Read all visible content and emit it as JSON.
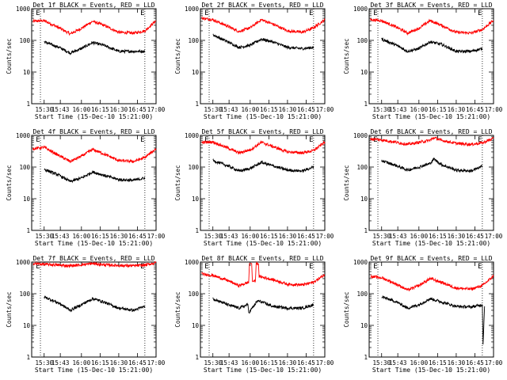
{
  "chart_data": [
    {
      "type": "line",
      "title": "Det 1f BLACK = Events, RED = LLD",
      "xlabel": "Start Time (15-Dec-10 15:21:00)",
      "ylabel": "Counts/sec",
      "yscale": "log",
      "ylim": [
        1,
        1000
      ],
      "xlim": [
        15.333,
        17.0
      ],
      "x_ticks": [
        15.5,
        15.7167,
        16.0,
        16.25,
        16.5,
        16.75,
        17.0
      ],
      "x_tick_labels": [
        "15:30",
        "15:43",
        "16:00",
        "16:15",
        "16:30",
        "16:45",
        "17:00"
      ],
      "y_ticks": [
        1,
        10,
        100,
        1000
      ],
      "y_tick_labels": [
        "1",
        "10",
        "100",
        "1000"
      ],
      "markers": [
        {
          "x": 15.45,
          "label": "E"
        },
        {
          "x": 16.85,
          "label": "E"
        }
      ],
      "series": [
        {
          "color": "#ff0000",
          "x": [
            15.35,
            15.5,
            15.7,
            15.85,
            16.0,
            16.15,
            16.3,
            16.5,
            16.7,
            16.85,
            17.0
          ],
          "values": [
            400,
            420,
            250,
            160,
            240,
            400,
            300,
            180,
            170,
            200,
            420
          ]
        },
        {
          "color": "#000000",
          "x": [
            15.5,
            15.7,
            15.85,
            16.0,
            16.15,
            16.3,
            16.5,
            16.7,
            16.85
          ],
          "values": [
            90,
            60,
            40,
            55,
            85,
            70,
            45,
            45,
            45
          ]
        }
      ]
    },
    {
      "type": "line",
      "title": "Det 2f BLACK = Events, RED = LLD",
      "xlabel": "Start Time (15-Dec-10 15:21:00)",
      "ylabel": "Counts/sec",
      "yscale": "log",
      "ylim": [
        1,
        1000
      ],
      "xlim": [
        15.333,
        17.0
      ],
      "x_ticks": [
        15.5,
        15.7167,
        16.0,
        16.25,
        16.5,
        16.75,
        17.0
      ],
      "x_tick_labels": [
        "15:30",
        "15:43",
        "16:00",
        "16:15",
        "16:30",
        "16:45",
        "17:00"
      ],
      "y_ticks": [
        1,
        10,
        100,
        1000
      ],
      "y_tick_labels": [
        "1",
        "10",
        "100",
        "1000"
      ],
      "markers": [
        {
          "x": 15.45,
          "label": "E"
        },
        {
          "x": 16.85,
          "label": "E"
        }
      ],
      "series": [
        {
          "color": "#ff0000",
          "x": [
            15.35,
            15.5,
            15.7,
            15.85,
            16.0,
            16.15,
            16.3,
            16.5,
            16.7,
            16.85,
            17.0
          ],
          "values": [
            500,
            450,
            280,
            190,
            250,
            450,
            330,
            200,
            180,
            250,
            450
          ]
        },
        {
          "color": "#000000",
          "x": [
            15.5,
            15.7,
            15.85,
            16.0,
            16.15,
            16.3,
            16.5,
            16.7,
            16.85
          ],
          "values": [
            150,
            90,
            60,
            70,
            110,
            90,
            60,
            55,
            60
          ]
        }
      ]
    },
    {
      "type": "line",
      "title": "Det 3f BLACK = Events, RED = LLD",
      "xlabel": "Start Time (15-Dec-10 15:21:00)",
      "ylabel": "Counts/sec",
      "yscale": "log",
      "ylim": [
        1,
        1000
      ],
      "xlim": [
        15.333,
        17.0
      ],
      "x_ticks": [
        15.5,
        15.7167,
        16.0,
        16.25,
        16.5,
        16.75,
        17.0
      ],
      "x_tick_labels": [
        "15:30",
        "15:43",
        "16:00",
        "16:15",
        "16:30",
        "16:45",
        "17:00"
      ],
      "y_ticks": [
        1,
        10,
        100,
        1000
      ],
      "y_tick_labels": [
        "1",
        "10",
        "100",
        "1000"
      ],
      "markers": [
        {
          "x": 15.45,
          "label": "E"
        },
        {
          "x": 16.85,
          "label": "E"
        }
      ],
      "series": [
        {
          "color": "#ff0000",
          "x": [
            15.35,
            15.5,
            15.7,
            15.85,
            16.0,
            16.15,
            16.3,
            16.5,
            16.7,
            16.85,
            17.0
          ],
          "values": [
            450,
            420,
            260,
            170,
            240,
            420,
            300,
            180,
            170,
            220,
            430
          ]
        },
        {
          "color": "#000000",
          "x": [
            15.5,
            15.7,
            15.85,
            16.0,
            16.15,
            16.3,
            16.5,
            16.7,
            16.85
          ],
          "values": [
            110,
            70,
            45,
            55,
            90,
            75,
            45,
            45,
            55
          ]
        }
      ]
    },
    {
      "type": "line",
      "title": "Det 4f BLACK = Events, RED = LLD",
      "xlabel": "Start Time (15-Dec-10 15:21:00)",
      "ylabel": "Counts/sec",
      "yscale": "log",
      "ylim": [
        1,
        1000
      ],
      "xlim": [
        15.333,
        17.0
      ],
      "x_ticks": [
        15.5,
        15.7167,
        16.0,
        16.25,
        16.5,
        16.75,
        17.0
      ],
      "x_tick_labels": [
        "15:30",
        "15:43",
        "16:00",
        "16:15",
        "16:30",
        "16:45",
        "17:00"
      ],
      "y_ticks": [
        1,
        10,
        100,
        1000
      ],
      "y_tick_labels": [
        "1",
        "10",
        "100",
        "1000"
      ],
      "markers": [
        {
          "x": 15.45,
          "label": "E"
        },
        {
          "x": 16.85,
          "label": "E"
        }
      ],
      "series": [
        {
          "color": "#ff0000",
          "x": [
            15.35,
            15.5,
            15.7,
            15.85,
            16.0,
            16.15,
            16.3,
            16.5,
            16.7,
            16.85,
            17.0
          ],
          "values": [
            380,
            420,
            230,
            150,
            220,
            360,
            260,
            160,
            150,
            200,
            380
          ]
        },
        {
          "color": "#000000",
          "x": [
            15.5,
            15.7,
            15.85,
            16.0,
            16.15,
            16.3,
            16.5,
            16.7,
            16.85
          ],
          "values": [
            85,
            55,
            35,
            45,
            70,
            55,
            40,
            38,
            45
          ]
        }
      ]
    },
    {
      "type": "line",
      "title": "Det 5f BLACK = Events, RED = LLD",
      "xlabel": "Start Time (15-Dec-10 15:21:00)",
      "ylabel": "Counts/sec",
      "yscale": "log",
      "ylim": [
        1,
        1000
      ],
      "xlim": [
        15.333,
        17.0
      ],
      "x_ticks": [
        15.5,
        15.7167,
        16.0,
        16.25,
        16.5,
        16.75,
        17.0
      ],
      "x_tick_labels": [
        "15:30",
        "15:43",
        "16:00",
        "16:15",
        "16:30",
        "16:45",
        "17:00"
      ],
      "y_ticks": [
        1,
        10,
        100,
        1000
      ],
      "y_tick_labels": [
        "1",
        "10",
        "100",
        "1000"
      ],
      "markers": [
        {
          "x": 15.45,
          "label": "E"
        },
        {
          "x": 16.85,
          "label": "E"
        }
      ],
      "series": [
        {
          "color": "#ff0000",
          "x": [
            15.35,
            15.5,
            15.7,
            15.85,
            16.0,
            16.15,
            16.3,
            16.5,
            16.7,
            16.85,
            17.0
          ],
          "values": [
            600,
            620,
            400,
            280,
            350,
            600,
            450,
            300,
            280,
            330,
            620
          ]
        },
        {
          "color": "#000000",
          "x": [
            15.5,
            15.7,
            15.85,
            16.0,
            16.15,
            16.3,
            16.5,
            16.7,
            16.85
          ],
          "values": [
            160,
            110,
            75,
            90,
            140,
            110,
            80,
            75,
            100
          ]
        }
      ]
    },
    {
      "type": "line",
      "title": "Det 6f BLACK = Events, RED = LLD",
      "xlabel": "Start Time (15-Dec-10 15:21:00)",
      "ylabel": "Counts/sec",
      "yscale": "log",
      "ylim": [
        1,
        1000
      ],
      "xlim": [
        15.333,
        17.0
      ],
      "x_ticks": [
        15.5,
        15.7167,
        16.0,
        16.25,
        16.5,
        16.75,
        17.0
      ],
      "x_tick_labels": [
        "15:30",
        "15:43",
        "16:00",
        "16:15",
        "16:30",
        "16:45",
        "17:00"
      ],
      "y_ticks": [
        1,
        10,
        100,
        1000
      ],
      "y_tick_labels": [
        "1",
        "10",
        "100",
        "1000"
      ],
      "markers": [
        {
          "x": 15.45,
          "label": "E"
        },
        {
          "x": 16.85,
          "label": "E"
        }
      ],
      "series": [
        {
          "color": "#ff0000",
          "x": [
            15.35,
            15.5,
            15.7,
            15.85,
            16.0,
            16.15,
            16.2,
            16.3,
            16.5,
            16.7,
            16.85,
            17.0
          ],
          "values": [
            780,
            720,
            600,
            520,
            600,
            700,
            850,
            700,
            560,
            520,
            580,
            800
          ]
        },
        {
          "color": "#000000",
          "x": [
            15.5,
            15.7,
            15.85,
            16.0,
            16.15,
            16.2,
            16.3,
            16.5,
            16.7,
            16.85
          ],
          "values": [
            160,
            110,
            80,
            100,
            130,
            180,
            120,
            80,
            75,
            105
          ]
        }
      ]
    },
    {
      "type": "line",
      "title": "Det 7f BLACK = Events, RED = LLD",
      "xlabel": "Start Time (15-Dec-10 15:21:00)",
      "ylabel": "Counts/sec",
      "yscale": "log",
      "ylim": [
        1,
        1000
      ],
      "xlim": [
        15.333,
        17.0
      ],
      "x_ticks": [
        15.5,
        15.7167,
        16.0,
        16.25,
        16.5,
        16.75,
        17.0
      ],
      "x_tick_labels": [
        "15:30",
        "15:43",
        "16:00",
        "16:15",
        "16:30",
        "16:45",
        "17:00"
      ],
      "y_ticks": [
        1,
        10,
        100,
        1000
      ],
      "y_tick_labels": [
        "1",
        "10",
        "100",
        "1000"
      ],
      "markers": [
        {
          "x": 15.45,
          "label": "E"
        },
        {
          "x": 16.85,
          "label": "E"
        }
      ],
      "series": [
        {
          "color": "#ff0000",
          "x": [
            15.35,
            15.5,
            15.7,
            15.85,
            16.0,
            16.15,
            16.3,
            16.5,
            16.7,
            16.85,
            17.0
          ],
          "values": [
            900,
            850,
            800,
            760,
            820,
            900,
            820,
            780,
            760,
            800,
            950
          ]
        },
        {
          "color": "#000000",
          "x": [
            15.5,
            15.7,
            15.85,
            16.0,
            16.15,
            16.3,
            16.5,
            16.7,
            16.85
          ],
          "values": [
            80,
            50,
            30,
            45,
            70,
            55,
            35,
            30,
            40
          ]
        }
      ]
    },
    {
      "type": "line",
      "title": "Det 8f BLACK = Events, RED = LLD",
      "xlabel": "Start Time (15-Dec-10 15:21:00)",
      "ylabel": "Counts/sec",
      "yscale": "log",
      "ylim": [
        1,
        1000
      ],
      "xlim": [
        15.333,
        17.0
      ],
      "x_ticks": [
        15.5,
        15.7167,
        16.0,
        16.25,
        16.5,
        16.75,
        17.0
      ],
      "x_tick_labels": [
        "15:30",
        "15:43",
        "16:00",
        "16:15",
        "16:30",
        "16:45",
        "17:00"
      ],
      "y_ticks": [
        1,
        10,
        100,
        1000
      ],
      "y_tick_labels": [
        "1",
        "10",
        "100",
        "1000"
      ],
      "markers": [
        {
          "x": 15.45,
          "label": "E"
        },
        {
          "x": 16.85,
          "label": "E"
        }
      ],
      "series": [
        {
          "color": "#ff0000",
          "x": [
            15.35,
            15.5,
            15.7,
            15.85,
            15.98,
            15.99,
            16.02,
            16.03,
            16.07,
            16.08,
            16.11,
            16.12,
            16.3,
            16.5,
            16.7,
            16.85,
            17.0
          ],
          "values": [
            420,
            380,
            260,
            180,
            230,
            900,
            900,
            250,
            250,
            900,
            900,
            350,
            280,
            200,
            190,
            230,
            400
          ]
        },
        {
          "color": "#000000",
          "x": [
            15.5,
            15.7,
            15.85,
            15.97,
            15.98,
            16.1,
            16.15,
            16.3,
            16.5,
            16.7,
            16.85
          ],
          "values": [
            70,
            45,
            35,
            45,
            25,
            60,
            55,
            40,
            35,
            35,
            45
          ]
        }
      ]
    },
    {
      "type": "line",
      "title": "Det 9f BLACK = Events, RED = LLD",
      "xlabel": "Start Time (15-Dec-10 15:21:00)",
      "ylabel": "Counts/sec",
      "yscale": "log",
      "ylim": [
        1,
        1000
      ],
      "xlim": [
        15.333,
        17.0
      ],
      "x_ticks": [
        15.5,
        15.7167,
        16.0,
        16.25,
        16.5,
        16.75,
        17.0
      ],
      "x_tick_labels": [
        "15:30",
        "15:43",
        "16:00",
        "16:15",
        "16:30",
        "16:45",
        "17:00"
      ],
      "y_ticks": [
        1,
        10,
        100,
        1000
      ],
      "y_tick_labels": [
        "1",
        "10",
        "100",
        "1000"
      ],
      "markers": [
        {
          "x": 15.45,
          "label": "E"
        },
        {
          "x": 16.85,
          "label": "E"
        }
      ],
      "series": [
        {
          "color": "#ff0000",
          "x": [
            15.35,
            15.5,
            15.7,
            15.85,
            16.0,
            16.15,
            16.3,
            16.5,
            16.7,
            16.85,
            17.0
          ],
          "values": [
            350,
            320,
            200,
            130,
            180,
            300,
            230,
            150,
            140,
            180,
            360
          ]
        },
        {
          "color": "#000000",
          "x": [
            15.5,
            15.7,
            15.85,
            16.0,
            16.15,
            16.3,
            16.5,
            16.7,
            16.85,
            16.86,
            16.88
          ],
          "values": [
            80,
            55,
            35,
            45,
            70,
            55,
            40,
            38,
            45,
            2.5,
            40
          ]
        }
      ]
    }
  ]
}
